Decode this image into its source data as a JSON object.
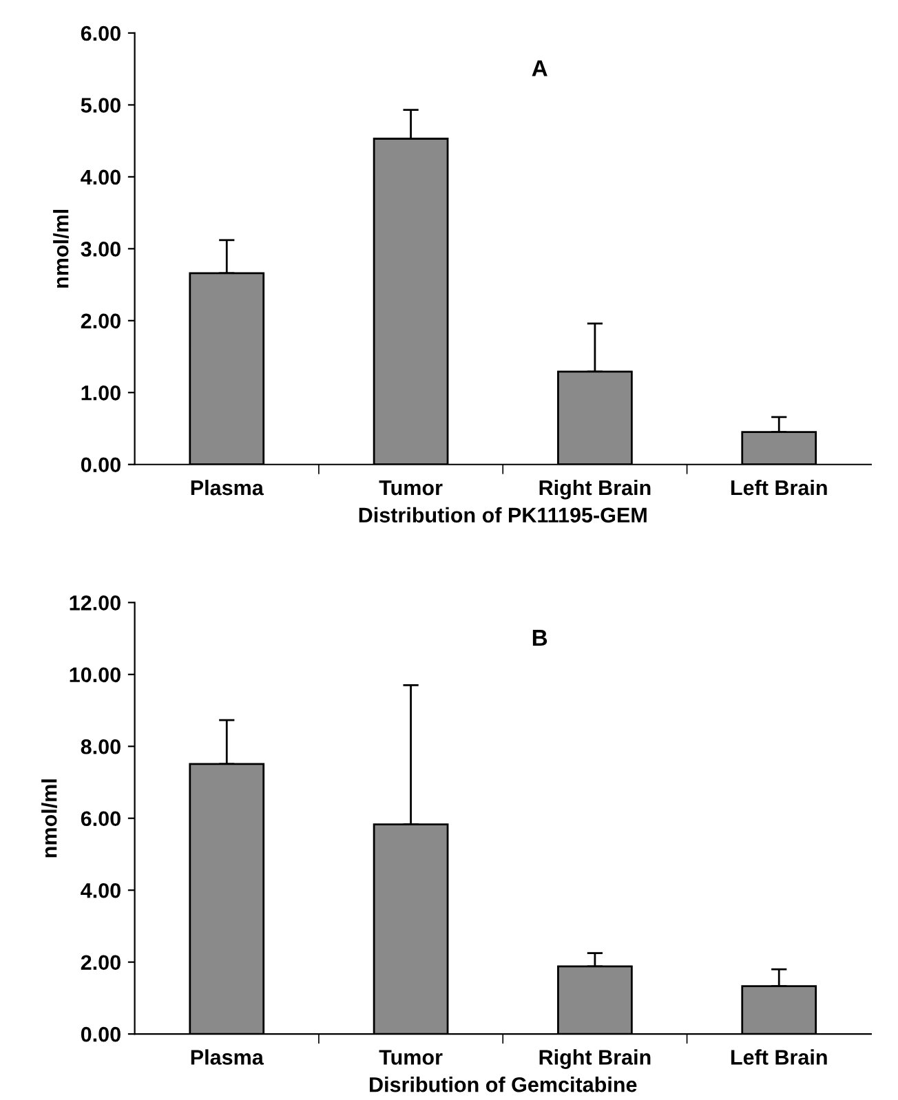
{
  "chart_data": [
    {
      "type": "bar",
      "xlabel": "Distribution of PK11195-GEM",
      "ylabel": "nmol/ml",
      "annotations": [
        "A"
      ],
      "categories": [
        "Plasma",
        "Tumor",
        "Right Brain",
        "Left Brain"
      ],
      "values": [
        2.66,
        4.53,
        1.29,
        0.45
      ],
      "errors": [
        [
          2.66,
          3.12
        ],
        [
          4.53,
          4.93
        ],
        [
          1.29,
          1.96
        ],
        [
          0.45,
          0.66
        ]
      ],
      "color": "#8a8a8a",
      "ylim": [
        0,
        6
      ],
      "yticks": [
        {
          "value": 0,
          "label": "0.00"
        },
        {
          "value": 1,
          "label": "1.00"
        },
        {
          "value": 2,
          "label": "2.00"
        },
        {
          "value": 3,
          "label": "3.00"
        },
        {
          "value": 4,
          "label": "4.00"
        },
        {
          "value": 5,
          "label": "5.00"
        },
        {
          "value": 6,
          "label": "6.00"
        }
      ],
      "grid": false,
      "legend": false
    },
    {
      "type": "bar",
      "xlabel": "Disribution of Gemcitabine",
      "ylabel": "nmol/ml",
      "annotations": [
        "B"
      ],
      "categories": [
        "Plasma",
        "Tumor",
        "Right Brain",
        "Left Brain"
      ],
      "values": [
        7.51,
        5.83,
        1.88,
        1.33
      ],
      "errors": [
        [
          7.51,
          8.73
        ],
        [
          5.83,
          9.7
        ],
        [
          1.88,
          2.25
        ],
        [
          1.33,
          1.8
        ]
      ],
      "color": "#8a8a8a",
      "ylim": [
        0,
        12
      ],
      "yticks": [
        {
          "value": 0,
          "label": "0.00"
        },
        {
          "value": 2,
          "label": "2.00"
        },
        {
          "value": 4,
          "label": "4.00"
        },
        {
          "value": 6,
          "label": "6.00"
        },
        {
          "value": 8,
          "label": "8.00"
        },
        {
          "value": 10,
          "label": "10.00"
        },
        {
          "value": 12,
          "label": "12.00"
        }
      ],
      "grid": false,
      "legend": false
    }
  ]
}
